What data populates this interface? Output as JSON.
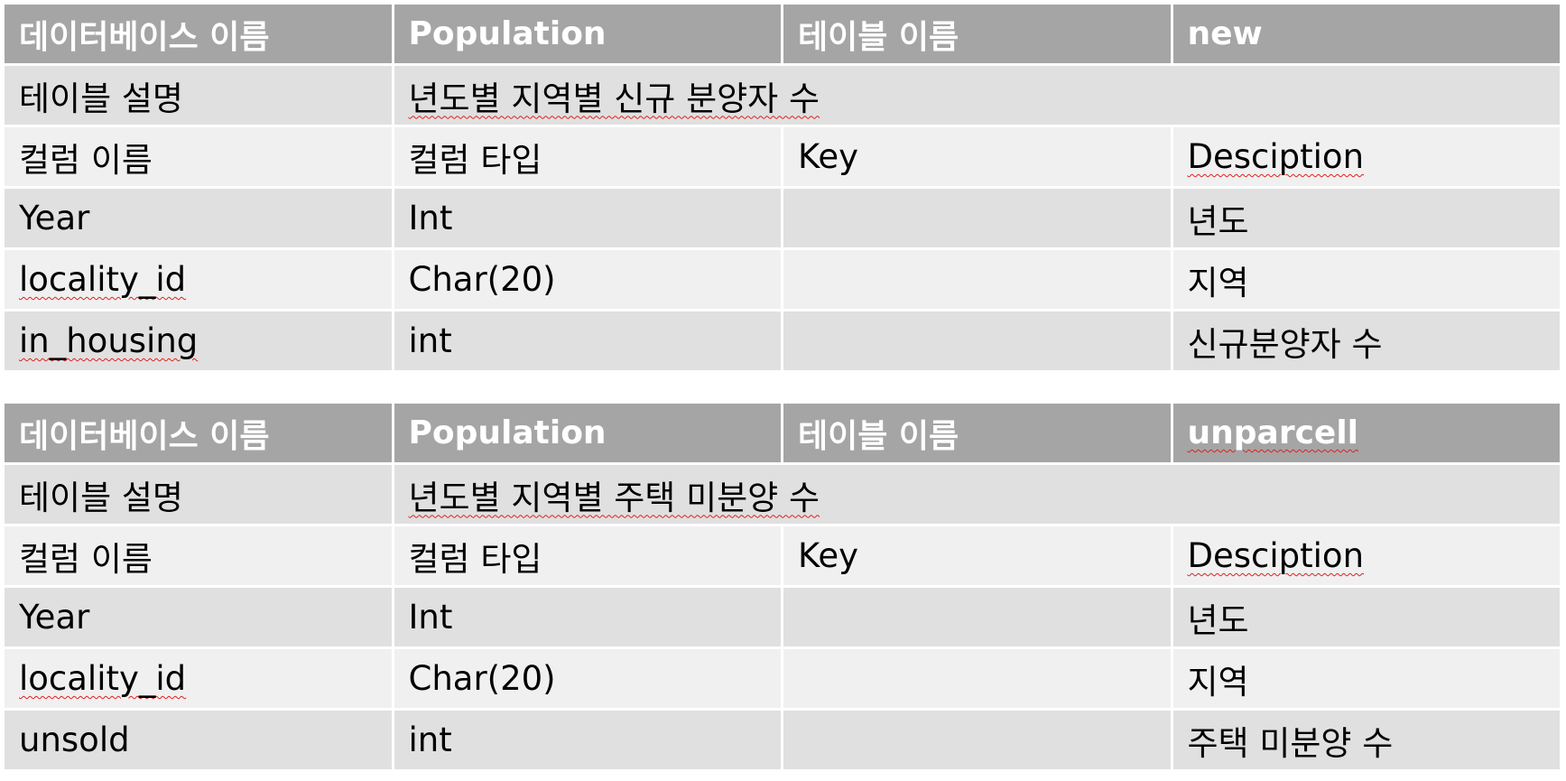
{
  "tables": [
    {
      "header": {
        "db_label": "데이터베이스 이름",
        "db_value": "Population",
        "table_label": "테이블 이름",
        "table_value": "new"
      },
      "description": {
        "label": "테이블 설명",
        "value": "년도별 지역별 신규 분양자 수"
      },
      "column_headers": [
        "컬럼 이름",
        "컬럼 타입",
        "Key",
        "Desciption"
      ],
      "columns": [
        {
          "name": "Year",
          "type": "Int",
          "key": "",
          "desc": "년도"
        },
        {
          "name": "locality_id",
          "type": "Char(20)",
          "key": "",
          "desc": "지역"
        },
        {
          "name": "in_housing",
          "type": "int",
          "key": "",
          "desc": "신규분양자 수"
        }
      ]
    },
    {
      "header": {
        "db_label": "데이터베이스 이름",
        "db_value": "Population",
        "table_label": "테이블 이름",
        "table_value": "unparcell"
      },
      "description": {
        "label": "테이블 설명",
        "value": "년도별 지역별 주택 미분양 수"
      },
      "column_headers": [
        "컬럼 이름",
        "컬럼 타입",
        "Key",
        "Desciption"
      ],
      "columns": [
        {
          "name": "Year",
          "type": "Int",
          "key": "",
          "desc": "년도"
        },
        {
          "name": "locality_id",
          "type": "Char(20)",
          "key": "",
          "desc": "지역"
        },
        {
          "name": "unsold",
          "type": "int",
          "key": "",
          "desc": "주택 미분양 수"
        }
      ]
    }
  ]
}
